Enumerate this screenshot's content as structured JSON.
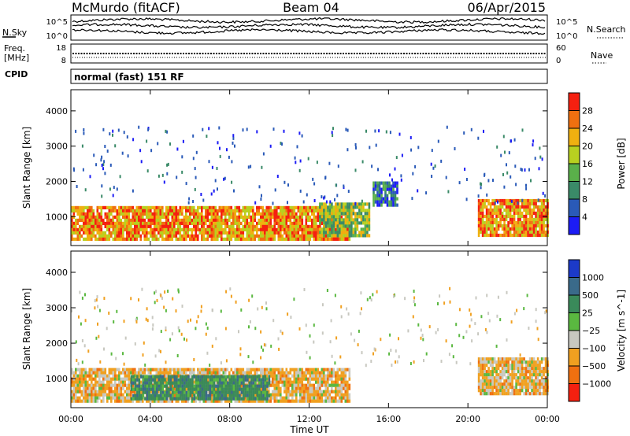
{
  "header": {
    "station": "McMurdo (fitACF)",
    "beam": "Beam 04",
    "date": "06/Apr/2015"
  },
  "strip_panels": {
    "nsky": {
      "left_label": "N.Sky",
      "right_label": "N.Search",
      "yticks": [
        "10^5",
        "10^0"
      ]
    },
    "freq": {
      "left_label_line1": "Freq.",
      "left_label_line2": "[MHz]",
      "left_ticks": [
        "18",
        "8"
      ],
      "right_label": "Nave",
      "right_ticks": [
        "60",
        "0"
      ]
    },
    "cpid": {
      "label": "CPID",
      "mode": "normal (fast) 151 RF"
    }
  },
  "chart_data": [
    {
      "type": "heatmap",
      "name": "power",
      "ylabel": "Slant Range [km]",
      "ylim": [
        180,
        4600
      ],
      "yticks": [
        1000,
        2000,
        3000,
        4000
      ],
      "xlabel": "",
      "xlim": [
        0,
        24
      ],
      "colorbar": {
        "label": "Power [dB]",
        "range": [
          0,
          32
        ],
        "ticks": [
          4,
          8,
          12,
          16,
          20,
          24,
          28
        ],
        "colors": [
          "#1c1cf5",
          "#2a5ab8",
          "#3a8a68",
          "#5ab04a",
          "#b8d020",
          "#f0b010",
          "#f07010",
          "#f52010"
        ]
      },
      "echo_regions": [
        {
          "t": [
            0,
            14
          ],
          "range": [
            400,
            1300
          ],
          "level": 28
        },
        {
          "t": [
            12.5,
            15
          ],
          "range": [
            500,
            1400
          ],
          "level": 20
        },
        {
          "t": [
            20.5,
            24
          ],
          "range": [
            500,
            1500
          ],
          "level": 28
        },
        {
          "t": [
            15.2,
            16.4
          ],
          "range": [
            1300,
            2000
          ],
          "level": 12
        }
      ]
    },
    {
      "type": "heatmap",
      "name": "velocity",
      "ylabel": "Slant Range [km]",
      "ylim": [
        180,
        4600
      ],
      "yticks": [
        1000,
        2000,
        3000,
        4000
      ],
      "xlabel": "Time UT",
      "xlim": [
        0,
        24
      ],
      "xticks": [
        "00:00",
        "04:00",
        "08:00",
        "12:00",
        "16:00",
        "20:00",
        "00:00"
      ],
      "colorbar": {
        "label": "Velocity [m s^-1]",
        "ticks": [
          "1000",
          "500",
          "25",
          "−25",
          "−100",
          "−500",
          "−1000"
        ],
        "colors": [
          "#1c3ac8",
          "#3a6a8a",
          "#3a8a5a",
          "#5ab840",
          "#c8c8c0",
          "#f0a020",
          "#f07010",
          "#f52010"
        ]
      },
      "echo_regions": [
        {
          "t": [
            0,
            14
          ],
          "range": [
            400,
            1300
          ],
          "level": -100
        },
        {
          "t": [
            3,
            10
          ],
          "range": [
            400,
            1100
          ],
          "level": 500
        },
        {
          "t": [
            20.5,
            24
          ],
          "range": [
            600,
            1600
          ],
          "level": -100
        }
      ]
    }
  ]
}
